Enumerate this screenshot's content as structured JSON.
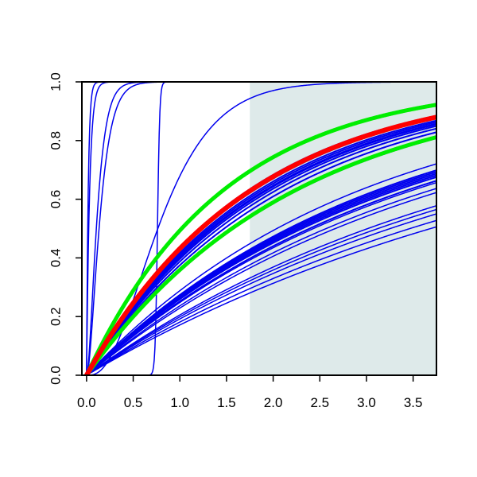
{
  "chart_data": {
    "type": "line",
    "title": "",
    "xlabel": "",
    "ylabel": "",
    "xlim": [
      -0.05,
      3.75
    ],
    "ylim": [
      0,
      1
    ],
    "x_ticks": [
      "0.0",
      "0.5",
      "1.0",
      "1.5",
      "2.0",
      "2.5",
      "3.0",
      "3.5"
    ],
    "y_ticks": [
      "0.0",
      "0.2",
      "0.4",
      "0.6",
      "0.8",
      "1.0"
    ],
    "shaded_region": {
      "x_start": 1.75,
      "x_end": 3.75,
      "color": "#deeaea"
    },
    "colors": {
      "series": "#0000ee",
      "highlight_red": "#ff0000",
      "highlight_green": "#00ee00"
    },
    "series": [
      {
        "family": "exp",
        "param": 0.188,
        "color": "blue",
        "width": 1.5
      },
      {
        "family": "exp",
        "param": 0.2,
        "color": "blue",
        "width": 1.5
      },
      {
        "family": "exp",
        "param": 0.213,
        "color": "blue",
        "width": 1.5
      },
      {
        "family": "exp",
        "param": 0.222,
        "color": "blue",
        "width": 1.5
      },
      {
        "family": "exp",
        "param": 0.23,
        "color": "blue",
        "width": 1.5
      },
      {
        "family": "exp",
        "param": 0.26,
        "color": "blue",
        "width": 1.5
      },
      {
        "family": "exp",
        "param": 0.27,
        "color": "blue",
        "width": 1.5
      },
      {
        "family": "exp",
        "param": 0.285,
        "color": "blue",
        "width": 1.5
      },
      {
        "family": "exp",
        "param": 0.29,
        "color": "blue",
        "width": 2
      },
      {
        "family": "exp",
        "param": 0.3,
        "color": "blue",
        "width": 2
      },
      {
        "family": "exp",
        "param": 0.305,
        "color": "blue",
        "width": 2
      },
      {
        "family": "exp",
        "param": 0.31,
        "color": "blue",
        "width": 2
      },
      {
        "family": "exp",
        "param": 0.315,
        "color": "blue",
        "width": 2
      },
      {
        "family": "exp",
        "param": 0.32,
        "color": "blue",
        "width": 2
      },
      {
        "family": "exp",
        "param": 0.34,
        "color": "blue",
        "width": 1.5
      },
      {
        "family": "exp",
        "param": 0.44,
        "color": "blue",
        "width": 2
      },
      {
        "family": "exp",
        "param": 0.47,
        "color": "blue",
        "width": 2
      },
      {
        "family": "exp",
        "param": 0.49,
        "color": "blue",
        "width": 2
      },
      {
        "family": "exp",
        "param": 0.505,
        "color": "blue",
        "width": 2
      },
      {
        "family": "exp",
        "param": 0.515,
        "color": "blue",
        "width": 2
      },
      {
        "family": "exp",
        "param": 0.52,
        "color": "blue",
        "width": 2
      },
      {
        "family": "exp",
        "param": 0.53,
        "color": "blue",
        "width": 2
      },
      {
        "family": "exp",
        "param": 0.54,
        "color": "blue",
        "width": 2
      },
      {
        "family": "exp",
        "param": 0.555,
        "color": "blue",
        "width": 2
      },
      {
        "family": "exp",
        "param": 0.575,
        "color": "blue",
        "width": 2
      },
      {
        "family": "exp",
        "param": 0.445,
        "color": "green",
        "width": 5
      },
      {
        "family": "exp",
        "param": 0.68,
        "color": "green",
        "width": 5
      },
      {
        "family": "exp",
        "param": 0.565,
        "color": "red",
        "width": 6
      },
      {
        "family": "exp",
        "param": 55,
        "color": "blue",
        "width": 1.5
      },
      {
        "family": "exp",
        "param": 30,
        "color": "blue",
        "width": 1.5
      },
      {
        "family": "gamma2",
        "param": 16,
        "color": "blue",
        "width": 1.5
      },
      {
        "family": "gamma2",
        "param": 12.5,
        "color": "blue",
        "width": 1.5
      },
      {
        "family": "gamma3",
        "param": 3.5,
        "color": "blue",
        "width": 1.5
      },
      {
        "family": "logistic",
        "param": 0.76,
        "scale": 0.012,
        "color": "blue",
        "width": 1.5
      }
    ]
  }
}
